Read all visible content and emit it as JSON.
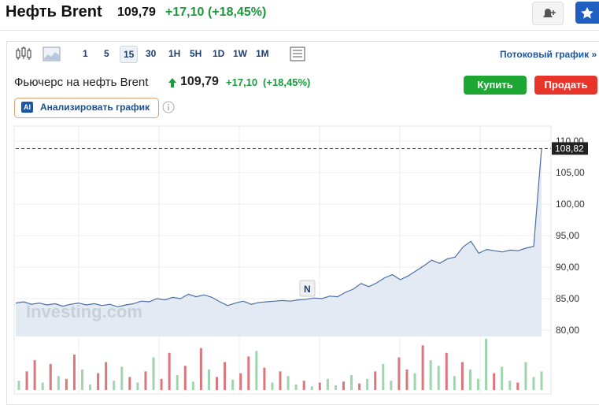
{
  "header": {
    "title": "Нефть Brent",
    "price": "109,79",
    "change": "+17,10",
    "change_pct": "(+18,45%)"
  },
  "toolbar": {
    "intervals": [
      "1",
      "5",
      "15",
      "30",
      "1H",
      "5H",
      "1D",
      "1W",
      "1M"
    ],
    "selected": "15",
    "stream_link": "Потоковый график »"
  },
  "instrument": {
    "name": "Фьючерс на нефть Brent",
    "price": "109,79",
    "change": "+17,10",
    "change_pct": "(+18,45%)",
    "buy": "Купить",
    "sell": "Продать",
    "analyze": "Анализировать график",
    "ai_badge": "AI"
  },
  "chart_data": {
    "type": "area",
    "color": "#4a6fa5",
    "fill": "#e3eaf3",
    "values": [
      84.3,
      84.5,
      84.1,
      84.3,
      84.0,
      84.2,
      83.8,
      84.1,
      84.3,
      84.0,
      84.2,
      83.9,
      84.1,
      83.7,
      84.0,
      84.2,
      84.6,
      84.5,
      85.0,
      84.8,
      85.2,
      85.0,
      85.7,
      85.3,
      85.6,
      85.2,
      84.5,
      83.9,
      84.3,
      84.6,
      84.1,
      84.4,
      84.5,
      84.6,
      84.7,
      84.6,
      84.8,
      84.9,
      85.1,
      85.0,
      85.4,
      85.3,
      86.0,
      86.5,
      87.4,
      86.9,
      87.5,
      88.3,
      88.8,
      88.0,
      88.6,
      89.4,
      90.2,
      91.1,
      90.6,
      91.3,
      91.6,
      93.2,
      94.1,
      92.2,
      92.8,
      92.6,
      92.4,
      92.7,
      92.6,
      93.0,
      93.3,
      108.82
    ],
    "ylim": [
      79,
      111
    ],
    "yticks": [
      {
        "value": 80,
        "label": "80,00"
      },
      {
        "value": 85,
        "label": "85,00"
      },
      {
        "value": 90,
        "label": "90,00"
      },
      {
        "value": 95,
        "label": "95,00"
      },
      {
        "value": 100,
        "label": "100,00"
      },
      {
        "value": 105,
        "label": "105,00"
      },
      {
        "value": 110,
        "label": "110,00"
      }
    ],
    "current": {
      "value": 108.82,
      "label": "108,82"
    },
    "grid": true,
    "watermark": "Investing.com",
    "event_marker": "N",
    "volume": {
      "values": [
        10,
        20,
        32,
        8,
        28,
        15,
        12,
        38,
        22,
        6,
        18,
        30,
        10,
        25,
        14,
        8,
        20,
        35,
        12,
        40,
        16,
        26,
        9,
        45,
        22,
        14,
        30,
        11,
        18,
        36,
        42,
        24,
        8,
        20,
        15,
        6,
        10,
        4,
        8,
        12,
        5,
        9,
        16,
        7,
        12,
        20,
        28,
        10,
        35,
        22,
        18,
        48,
        32,
        26,
        40,
        15,
        30,
        22,
        12,
        55,
        18,
        25,
        10,
        8,
        30,
        14,
        20
      ],
      "colors": [
        "g",
        "r",
        "r",
        "g",
        "r",
        "g",
        "r",
        "r",
        "g",
        "g",
        "r",
        "r",
        "g",
        "g",
        "r",
        "g",
        "r",
        "g",
        "r",
        "r",
        "g",
        "r",
        "g",
        "r",
        "g",
        "r",
        "r",
        "g",
        "r",
        "r",
        "g",
        "r",
        "g",
        "r",
        "g",
        "g",
        "r",
        "g",
        "r",
        "g",
        "g",
        "r",
        "g",
        "r",
        "g",
        "r",
        "g",
        "g",
        "r",
        "r",
        "g",
        "r",
        "g",
        "g",
        "r",
        "g",
        "r",
        "g",
        "g",
        "g",
        "r",
        "g",
        "g",
        "r",
        "g",
        "g",
        "g"
      ],
      "up_color": "#9fd4ae",
      "down_color": "#d9777d"
    }
  }
}
